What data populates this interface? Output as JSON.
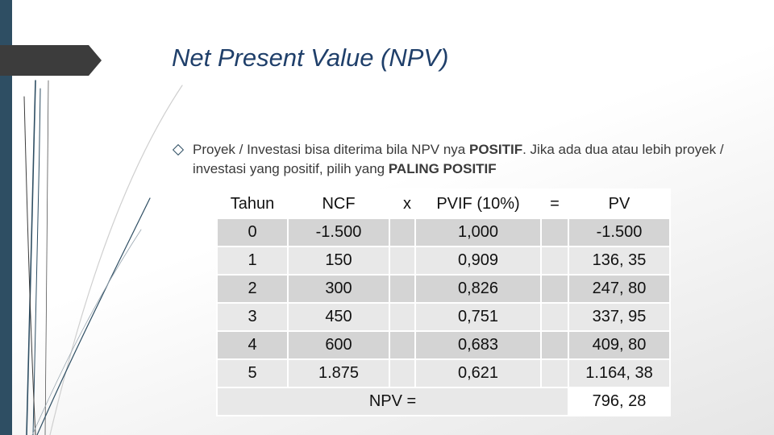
{
  "slide": {
    "title": "Net Present Value (NPV)",
    "accent_color": "#2e4e63",
    "title_color": "#1f3f6a"
  },
  "bullet": {
    "icon": "diamond-bullet-icon",
    "part1": "Proyek / Investasi bisa diterima bila NPV nya ",
    "bold1": "POSITIF",
    "part2": ". Jika ada dua atau lebih proyek / investasi yang positif, pilih yang ",
    "bold2": "PALING POSITIF"
  },
  "table": {
    "headers": {
      "tahun": "Tahun",
      "ncf": "NCF",
      "times": "x",
      "pvif": "PVIF (10%)",
      "equals": "=",
      "pv": "PV"
    },
    "rows": [
      {
        "tahun": "0",
        "ncf": "-1.500",
        "pvif": "1,000",
        "pv": "-1.500"
      },
      {
        "tahun": "1",
        "ncf": "150",
        "pvif": "0,909",
        "pv": "136, 35"
      },
      {
        "tahun": "2",
        "ncf": "300",
        "pvif": "0,826",
        "pv": "247, 80"
      },
      {
        "tahun": "3",
        "ncf": "450",
        "pvif": "0,751",
        "pv": "337, 95"
      },
      {
        "tahun": "4",
        "ncf": "600",
        "pvif": "0,683",
        "pv": "409, 80"
      },
      {
        "tahun": "5",
        "ncf": "1.875",
        "pvif": "0,621",
        "pv": "1.164, 38"
      }
    ],
    "npv_label": "NPV =",
    "npv_value": "796, 28"
  }
}
